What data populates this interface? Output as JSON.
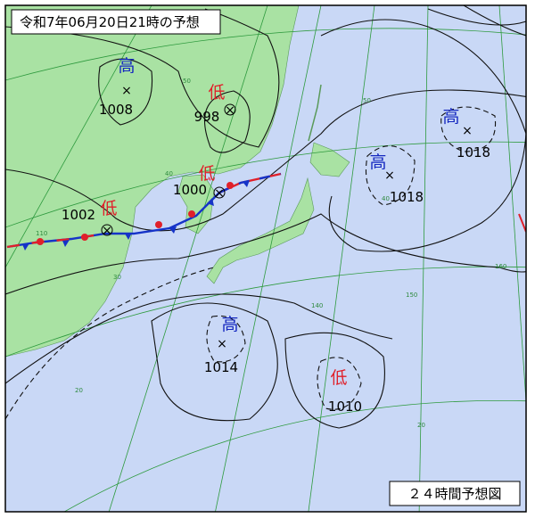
{
  "header": {
    "title": "令和7年06月20日21時の予想"
  },
  "systems": [
    {
      "kind": "高",
      "pressure": 1008
    },
    {
      "kind": "低",
      "pressure": 998
    },
    {
      "kind": "低",
      "pressure": 1000
    },
    {
      "kind": "低",
      "pressure": 1002
    },
    {
      "kind": "高",
      "pressure": 1018
    },
    {
      "kind": "高",
      "pressure": 1018
    },
    {
      "kind": "高",
      "pressure": 1014
    },
    {
      "kind": "低",
      "pressure": 1010
    }
  ],
  "grid_labels": [
    "50",
    "40",
    "30",
    "20",
    "110",
    "140",
    "150",
    "160",
    "50",
    "40",
    "20"
  ],
  "footer": {
    "label": "２４時間予想図"
  }
}
